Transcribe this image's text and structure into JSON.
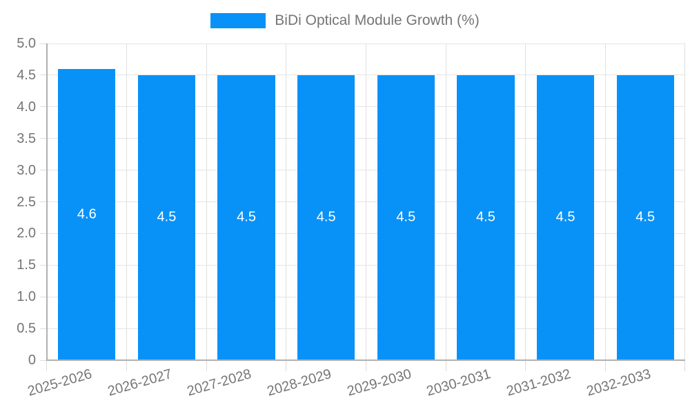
{
  "chart_data": {
    "type": "bar",
    "title": "",
    "legend": {
      "position": "top",
      "label": "BiDi Optical Module Growth (%)"
    },
    "categories": [
      "2025-2026",
      "2026-2027",
      "2027-2028",
      "2028-2029",
      "2029-2030",
      "2030-2031",
      "2031-2032",
      "2032-2033"
    ],
    "series": [
      {
        "name": "BiDi Optical Module Growth (%)",
        "color": "#0892f8",
        "values": [
          4.6,
          4.5,
          4.5,
          4.5,
          4.5,
          4.5,
          4.5,
          4.5
        ]
      }
    ],
    "bar_value_labels": [
      "4.6",
      "4.5",
      "4.5",
      "4.5",
      "4.5",
      "4.5",
      "4.5",
      "4.5"
    ],
    "value_label_color": "#ffffff",
    "xlabel": "",
    "ylabel": "",
    "ylim": [
      0,
      5
    ],
    "yticks": {
      "values": [
        0,
        0.5,
        1,
        1.5,
        2,
        2.5,
        3,
        3.5,
        4,
        4.5,
        5
      ],
      "labels": [
        "0",
        "0.5",
        "1.0",
        "1.5",
        "2.0",
        "2.5",
        "3.0",
        "3.5",
        "4.0",
        "4.5",
        "5.0"
      ]
    },
    "grid": true,
    "axis_text_color": "#757575"
  }
}
